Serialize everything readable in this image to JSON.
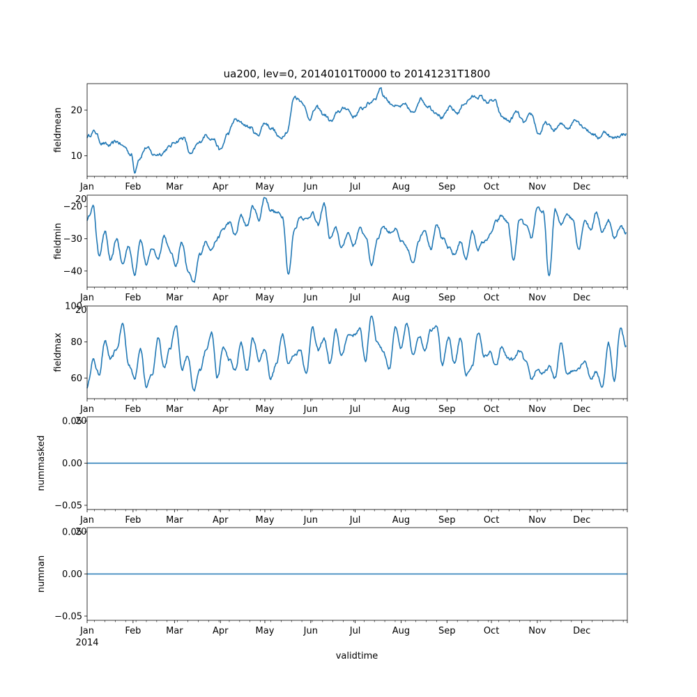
{
  "chart_data": {
    "type": "line",
    "title": "ua200, lev=0, 20140101T0000 to 20141231T1800",
    "xlabel": "validtime",
    "year_label": "2014",
    "x_tick_labels": [
      "Jan",
      "Feb",
      "Mar",
      "Apr",
      "May",
      "Jun",
      "Jul",
      "Aug",
      "Sep",
      "Oct",
      "Nov",
      "Dec"
    ],
    "color": "#1f77b4",
    "x_range": [
      "2014-01-01",
      "2014-12-31T18:00"
    ],
    "panels": [
      {
        "ylabel": "fieldmean",
        "ylim": [
          5.5,
          25.8
        ],
        "yticks": [
          10,
          20
        ],
        "ytick_labels": [
          "10",
          "20"
        ],
        "offset_label": "",
        "series": {
          "x_days": [
            0,
            5,
            10,
            15,
            20,
            25,
            30,
            32,
            35,
            40,
            45,
            50,
            55,
            60,
            65,
            70,
            75,
            80,
            85,
            90,
            95,
            100,
            105,
            110,
            115,
            120,
            125,
            130,
            135,
            140,
            145,
            150,
            155,
            160,
            165,
            170,
            175,
            180,
            185,
            190,
            195,
            198,
            200,
            205,
            210,
            215,
            220,
            225,
            230,
            235,
            240,
            245,
            250,
            255,
            260,
            265,
            270,
            275,
            280,
            285,
            290,
            295,
            300,
            305,
            310,
            315,
            320,
            325,
            330,
            335,
            340,
            345,
            350,
            355,
            360,
            364
          ],
          "values": [
            14.2,
            15.3,
            12.8,
            12.2,
            13.1,
            12.0,
            10.2,
            6.5,
            9.5,
            11.8,
            10.2,
            10.5,
            11.8,
            13.2,
            14.0,
            10.2,
            12.6,
            14.5,
            13.8,
            11.2,
            14.8,
            17.9,
            17.0,
            16.2,
            14.5,
            17.2,
            16.0,
            13.8,
            15.4,
            23.0,
            22.0,
            18.2,
            20.5,
            19.0,
            17.5,
            19.8,
            20.5,
            18.6,
            20.2,
            21.4,
            22.8,
            25.0,
            23.2,
            21.5,
            20.6,
            21.0,
            19.2,
            22.6,
            21.0,
            19.8,
            18.3,
            20.5,
            19.4,
            21.6,
            22.8,
            23.0,
            21.8,
            22.0,
            18.5,
            17.6,
            19.5,
            17.2,
            19.0,
            14.8,
            17.1,
            15.6,
            16.8,
            16.2,
            18.1,
            16.5,
            15.1,
            14.0,
            15.2,
            13.8,
            14.5,
            14.9
          ]
        }
      },
      {
        "ylabel": "fieldmin",
        "ylim": [
          -45,
          -16.5
        ],
        "yticks": [
          -40,
          -30,
          -20
        ],
        "ytick_labels": [
          "−40",
          "−30",
          "−20"
        ],
        "offset_label": "20",
        "series": {
          "x_days": [
            0,
            4,
            8,
            12,
            16,
            20,
            24,
            28,
            32,
            36,
            40,
            44,
            48,
            52,
            56,
            60,
            64,
            68,
            72,
            76,
            80,
            84,
            88,
            92,
            96,
            100,
            104,
            108,
            112,
            116,
            120,
            124,
            128,
            132,
            136,
            140,
            144,
            148,
            152,
            156,
            160,
            164,
            168,
            172,
            176,
            180,
            184,
            188,
            192,
            196,
            200,
            204,
            208,
            212,
            216,
            220,
            224,
            228,
            232,
            236,
            240,
            244,
            248,
            252,
            256,
            260,
            264,
            268,
            272,
            276,
            280,
            284,
            288,
            292,
            296,
            300,
            304,
            308,
            312,
            316,
            320,
            324,
            328,
            332,
            336,
            340,
            344,
            348,
            352,
            356,
            360,
            364
          ],
          "values": [
            -24,
            -20,
            -35,
            -28,
            -37,
            -30,
            -38,
            -32,
            -41,
            -30,
            -38,
            -33,
            -36,
            -29,
            -34,
            -38,
            -31,
            -40,
            -44,
            -35,
            -31,
            -33,
            -30,
            -27,
            -25,
            -29,
            -23,
            -26,
            -20,
            -24,
            -17,
            -21,
            -22,
            -23,
            -41,
            -27,
            -23,
            -24,
            -22,
            -26,
            -19,
            -30,
            -27,
            -33,
            -28,
            -32,
            -27,
            -29,
            -38,
            -30,
            -26,
            -28,
            -27,
            -31,
            -33,
            -38,
            -30,
            -27,
            -33,
            -25,
            -30,
            -33,
            -35,
            -31,
            -36,
            -28,
            -33,
            -31,
            -29,
            -25,
            -23,
            -25,
            -37,
            -24,
            -26,
            -30,
            -20,
            -22,
            -42,
            -21,
            -26,
            -22,
            -24,
            -33,
            -24,
            -27,
            -22,
            -28,
            -24,
            -30,
            -26,
            -28
          ]
        }
      },
      {
        "ylabel": "fieldmax",
        "ylim": [
          48.5,
          100
        ],
        "yticks": [
          60,
          80,
          100
        ],
        "ytick_labels": [
          "60",
          "80",
          "100"
        ],
        "offset_label": "20",
        "series": {
          "x_days": [
            0,
            4,
            8,
            12,
            16,
            20,
            24,
            28,
            32,
            36,
            40,
            44,
            48,
            52,
            56,
            60,
            64,
            68,
            72,
            76,
            80,
            84,
            88,
            92,
            96,
            100,
            104,
            108,
            112,
            116,
            120,
            124,
            128,
            132,
            136,
            140,
            144,
            148,
            152,
            156,
            160,
            164,
            168,
            172,
            176,
            180,
            184,
            188,
            192,
            196,
            200,
            204,
            208,
            212,
            216,
            220,
            224,
            228,
            232,
            236,
            240,
            244,
            248,
            252,
            256,
            260,
            264,
            268,
            272,
            276,
            280,
            284,
            288,
            292,
            296,
            300,
            304,
            308,
            312,
            316,
            320,
            324,
            328,
            332,
            336,
            340,
            344,
            348,
            352,
            356,
            360,
            364
          ],
          "values": [
            55,
            70,
            62,
            80,
            70,
            76,
            90,
            68,
            60,
            77,
            55,
            62,
            83,
            66,
            76,
            90,
            65,
            72,
            52,
            64,
            75,
            86,
            60,
            77,
            70,
            64,
            79,
            64,
            82,
            70,
            76,
            60,
            68,
            85,
            68,
            73,
            76,
            62,
            88,
            75,
            82,
            68,
            86,
            72,
            84,
            84,
            87,
            70,
            95,
            80,
            75,
            65,
            88,
            76,
            90,
            72,
            84,
            76,
            87,
            90,
            67,
            82,
            68,
            82,
            62,
            66,
            86,
            72,
            74,
            66,
            77,
            71,
            70,
            75,
            69,
            59,
            65,
            62,
            66,
            60,
            79,
            63,
            64,
            66,
            70,
            60,
            63,
            55,
            80,
            58,
            88,
            78
          ]
        }
      },
      {
        "ylabel": "nummasked",
        "ylim": [
          -0.055,
          0.055
        ],
        "yticks": [
          -0.05,
          0.0,
          0.05
        ],
        "ytick_labels": [
          "−0.05",
          "0.00",
          "0.05"
        ],
        "offset_label": "20",
        "series": {
          "x_days": [
            0,
            364.75
          ],
          "values": [
            0,
            0
          ]
        }
      },
      {
        "ylabel": "numnan",
        "ylim": [
          -0.055,
          0.055
        ],
        "yticks": [
          -0.05,
          0.0,
          0.05
        ],
        "ytick_labels": [
          "−0.05",
          "0.00",
          "0.05"
        ],
        "offset_label": "20",
        "series": {
          "x_days": [
            0,
            364.75
          ],
          "values": [
            0,
            0
          ]
        }
      }
    ]
  }
}
